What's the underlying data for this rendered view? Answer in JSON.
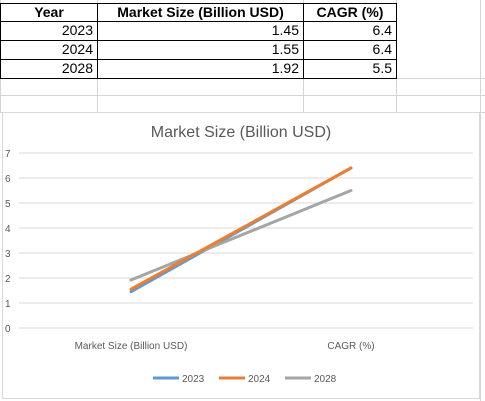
{
  "table": {
    "headers": [
      "Year",
      "Market Size (Billion USD)",
      "CAGR (%)"
    ],
    "rows": [
      [
        "2023",
        "1.45",
        "6.4"
      ],
      [
        "2024",
        "1.55",
        "6.4"
      ],
      [
        "2028",
        "1.92",
        "5.5"
      ]
    ]
  },
  "chart_data": {
    "type": "line",
    "title": "Market Size (Billion USD)",
    "categories": [
      "Market Size (Billion USD)",
      "CAGR (%)"
    ],
    "series": [
      {
        "name": "2023",
        "values": [
          1.45,
          6.4
        ],
        "color": "#5B9BD5"
      },
      {
        "name": "2024",
        "values": [
          1.55,
          6.4
        ],
        "color": "#ED7D31"
      },
      {
        "name": "2028",
        "values": [
          1.92,
          5.5
        ],
        "color": "#A5A5A5"
      }
    ],
    "ylim": [
      0,
      7
    ],
    "yticks": [
      "0",
      "1",
      "2",
      "3",
      "4",
      "5",
      "6",
      "7"
    ],
    "grid": true,
    "legend_position": "bottom"
  }
}
